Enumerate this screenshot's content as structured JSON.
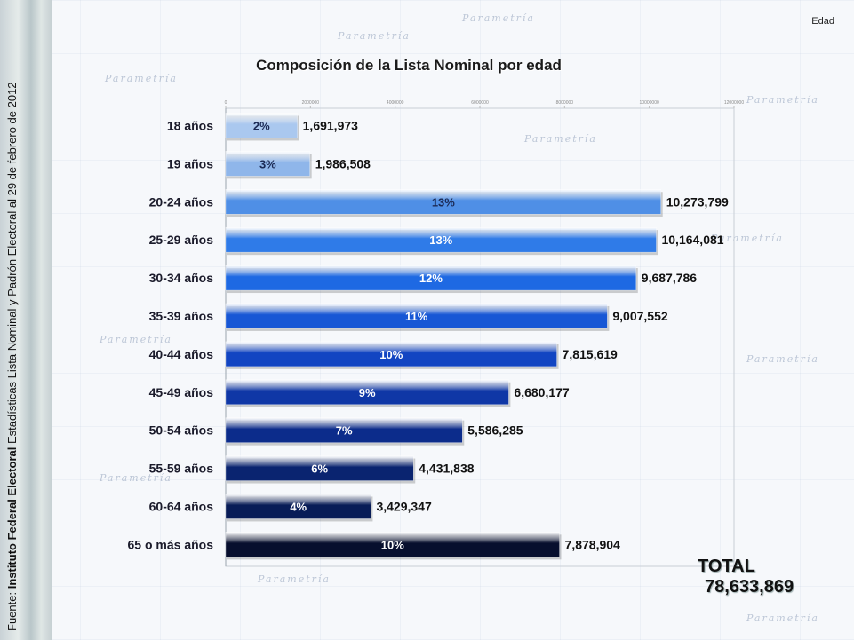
{
  "corner_label": "Edad",
  "source_prefix": "Fuente: ",
  "source_bold": "Instituto Federal Electoral",
  "source_rest": " Estadísticas Lista Nominal y Padrón Electoral al 29 de febrero de 2012",
  "watermark_text": "Parametría",
  "total_label": "TOTAL",
  "total_value": "78,633,869",
  "chart_data": {
    "type": "bar",
    "orientation": "horizontal",
    "title": "Composición de la Lista Nominal por edad",
    "xlim": [
      0,
      12000000
    ],
    "x_ticks": [
      "0",
      "2000000",
      "4000000",
      "6000000",
      "8000000",
      "10000000",
      "12000000"
    ],
    "grid": false,
    "categories": [
      "18 años",
      "19 años",
      "20-24 años",
      "25-29 años",
      "30-34 años",
      "35-39 años",
      "40-44 años",
      "45-49 años",
      "50-54 años",
      "55-59 años",
      "60-64 años",
      "65 o más años"
    ],
    "values": [
      1691973,
      1986508,
      10273799,
      10164081,
      9687786,
      9007552,
      7815619,
      6680177,
      5586285,
      4431838,
      3429347,
      7878904
    ],
    "value_labels": [
      "1,691,973",
      "1,986,508",
      "10,273,799",
      "10,164,081",
      "9,687,786",
      "9,007,552",
      "7,815,619",
      "6,680,177",
      "5,586,285",
      "4,431,838",
      "3,429,347",
      "7,878,904"
    ],
    "percent_labels": [
      "2%",
      "3%",
      "13%",
      "13%",
      "12%",
      "11%",
      "10%",
      "9%",
      "7%",
      "6%",
      "4%",
      "10%"
    ],
    "colors": [
      "#aac8ef",
      "#8fb6ea",
      "#4f8fe6",
      "#2f7be8",
      "#1e69e3",
      "#1757d5",
      "#1245c2",
      "#0f37a6",
      "#0c2c8b",
      "#0a2470",
      "#081c57",
      "#070f2e"
    ]
  }
}
